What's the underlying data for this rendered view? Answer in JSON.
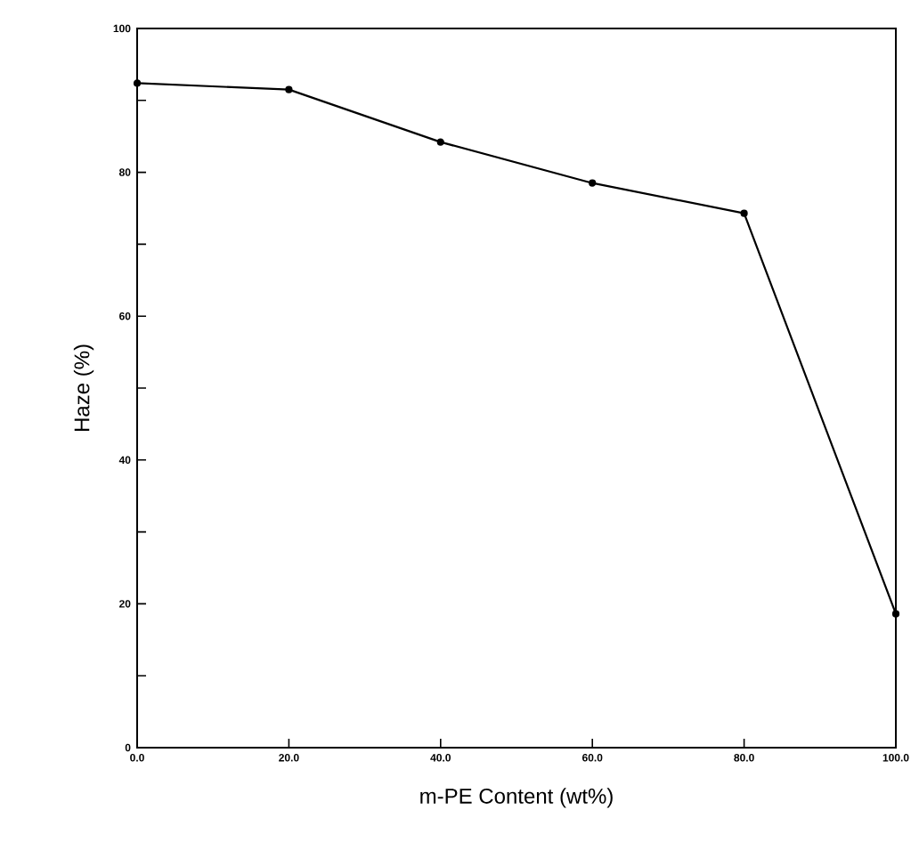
{
  "chart_data": {
    "type": "line",
    "xlabel": "m-PE Content (wt%)",
    "ylabel": "Haze (%)",
    "x": [
      0,
      20,
      40,
      60,
      80,
      100
    ],
    "series": [
      {
        "color": "#000000",
        "values": [
          92.4,
          91.5,
          84.2,
          78.5,
          74.3,
          18.6
        ]
      }
    ],
    "marker": "circle",
    "line_style": "solid",
    "grid": false,
    "xlim": [
      0,
      100
    ],
    "ylim": [
      0,
      100
    ],
    "xticks": [
      {
        "value": 0,
        "label": "0.0"
      },
      {
        "value": 20,
        "label": "20.0"
      },
      {
        "value": 40,
        "label": "40.0"
      },
      {
        "value": 60,
        "label": "60.0"
      },
      {
        "value": 80,
        "label": "80.0"
      },
      {
        "value": 100,
        "label": "100.0"
      }
    ],
    "yticks": [
      0,
      {
        "value": 10,
        "label": null
      },
      20,
      {
        "value": 30,
        "label": null
      },
      40,
      {
        "value": 50,
        "label": null
      },
      60,
      {
        "value": 70,
        "label": null
      },
      80,
      {
        "value": 90,
        "label": null
      },
      100
    ]
  }
}
